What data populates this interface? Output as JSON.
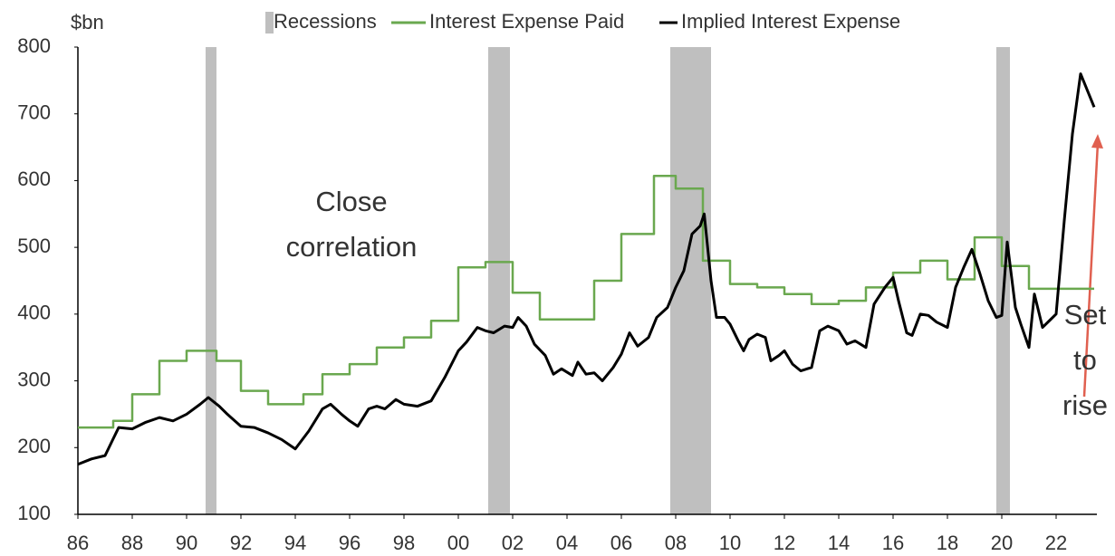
{
  "chart_data": {
    "type": "line",
    "y_label": "$bn",
    "xlim": [
      1986,
      2023.5
    ],
    "ylim": [
      100,
      800
    ],
    "yticks": [
      100,
      200,
      300,
      400,
      500,
      600,
      700,
      800
    ],
    "xticks": [
      {
        "value": 1986,
        "label": "86"
      },
      {
        "value": 1988,
        "label": "88"
      },
      {
        "value": 1990,
        "label": "90"
      },
      {
        "value": 1992,
        "label": "92"
      },
      {
        "value": 1994,
        "label": "94"
      },
      {
        "value": 1996,
        "label": "96"
      },
      {
        "value": 1998,
        "label": "98"
      },
      {
        "value": 2000,
        "label": "00"
      },
      {
        "value": 2002,
        "label": "02"
      },
      {
        "value": 2004,
        "label": "04"
      },
      {
        "value": 2006,
        "label": "06"
      },
      {
        "value": 2008,
        "label": "08"
      },
      {
        "value": 2010,
        "label": "10"
      },
      {
        "value": 2012,
        "label": "12"
      },
      {
        "value": 2014,
        "label": "14"
      },
      {
        "value": 2016,
        "label": "16"
      },
      {
        "value": 2018,
        "label": "18"
      },
      {
        "value": 2020,
        "label": "20"
      },
      {
        "value": 2022,
        "label": "22"
      }
    ],
    "recessions": {
      "name": "Recessions",
      "color": "#bfbfbf",
      "ranges": [
        [
          1990.7,
          1991.1
        ],
        [
          2001.1,
          2001.9
        ],
        [
          2007.8,
          2009.3
        ],
        [
          2019.8,
          2020.3
        ]
      ]
    },
    "series": [
      {
        "name": "Interest Expense Paid",
        "color": "#6aa84f",
        "x": [
          1986,
          1987.3,
          1987.3,
          1988,
          1988,
          1989,
          1989,
          1990,
          1990,
          1991.1,
          1991.1,
          1992,
          1992,
          1993,
          1993,
          1994.3,
          1994.3,
          1995,
          1995,
          1996,
          1996,
          1997,
          1997,
          1998,
          1998,
          1999,
          1999,
          2000,
          2000,
          2001,
          2001,
          2002,
          2002,
          2003,
          2003,
          2005,
          2005,
          2006,
          2006,
          2007.2,
          2007.2,
          2008,
          2008,
          2009,
          2009,
          2010,
          2010,
          2011,
          2011,
          2012,
          2012,
          2013,
          2013,
          2014,
          2014,
          2015,
          2015,
          2016,
          2016,
          2017,
          2017,
          2018,
          2018,
          2019,
          2019,
          2020,
          2020,
          2021,
          2021,
          2023.4
        ],
        "values": [
          230,
          230,
          240,
          240,
          280,
          280,
          330,
          330,
          345,
          345,
          330,
          330,
          285,
          285,
          265,
          265,
          280,
          280,
          310,
          310,
          325,
          325,
          350,
          350,
          365,
          365,
          390,
          390,
          470,
          470,
          478,
          478,
          432,
          432,
          392,
          392,
          450,
          450,
          520,
          520,
          607,
          607,
          588,
          588,
          480,
          480,
          445,
          445,
          440,
          440,
          430,
          430,
          415,
          415,
          420,
          420,
          440,
          440,
          462,
          462,
          480,
          480,
          452,
          452,
          515,
          515,
          472,
          472,
          438,
          438
        ]
      },
      {
        "name": "Implied Interest Expense",
        "color": "#000000",
        "x": [
          1986,
          1986.5,
          1987,
          1987.5,
          1988,
          1988.5,
          1989,
          1989.5,
          1990,
          1990.5,
          1990.8,
          1991.2,
          1991.5,
          1992,
          1992.5,
          1993,
          1993.5,
          1994,
          1994.5,
          1995,
          1995.3,
          1995.7,
          1996,
          1996.3,
          1996.7,
          1997,
          1997.3,
          1997.7,
          1998,
          1998.5,
          1999,
          1999.5,
          2000,
          2000.3,
          2000.7,
          2001,
          2001.3,
          2001.7,
          2002,
          2002.2,
          2002.5,
          2002.8,
          2003.2,
          2003.5,
          2003.8,
          2004.2,
          2004.4,
          2004.7,
          2005,
          2005.3,
          2005.7,
          2006,
          2006.3,
          2006.6,
          2007,
          2007.3,
          2007.7,
          2008,
          2008.3,
          2008.6,
          2008.9,
          2009.05,
          2009.3,
          2009.5,
          2009.8,
          2010,
          2010.3,
          2010.5,
          2010.7,
          2011,
          2011.3,
          2011.5,
          2011.8,
          2012,
          2012.3,
          2012.6,
          2013,
          2013.3,
          2013.6,
          2014,
          2014.3,
          2014.6,
          2015,
          2015.3,
          2015.7,
          2016,
          2016.2,
          2016.5,
          2016.7,
          2017,
          2017.3,
          2017.6,
          2018,
          2018.3,
          2018.6,
          2018.9,
          2019.2,
          2019.5,
          2019.8,
          2020,
          2020.2,
          2020.5,
          2020.7,
          2021,
          2021.2,
          2021.5,
          2021.8,
          2022,
          2022.3,
          2022.6,
          2022.9,
          2023.2,
          2023.4
        ],
        "values": [
          175,
          183,
          188,
          230,
          228,
          238,
          245,
          240,
          250,
          265,
          275,
          262,
          250,
          232,
          230,
          222,
          212,
          198,
          225,
          258,
          265,
          250,
          240,
          232,
          258,
          262,
          258,
          272,
          265,
          262,
          270,
          305,
          345,
          358,
          380,
          375,
          372,
          382,
          380,
          395,
          382,
          355,
          338,
          310,
          318,
          308,
          328,
          310,
          312,
          300,
          320,
          340,
          372,
          352,
          365,
          395,
          410,
          440,
          465,
          520,
          532,
          550,
          450,
          395,
          395,
          385,
          360,
          345,
          362,
          370,
          365,
          330,
          338,
          345,
          325,
          315,
          320,
          375,
          382,
          375,
          355,
          360,
          350,
          415,
          440,
          455,
          420,
          372,
          368,
          400,
          398,
          388,
          380,
          440,
          470,
          497,
          460,
          420,
          395,
          398,
          508,
          410,
          385,
          350,
          430,
          380,
          392,
          400,
          540,
          670,
          760,
          730,
          710
        ]
      }
    ],
    "annotations": [
      {
        "lines": [
          "Close",
          "correlation"
        ]
      },
      {
        "lines": [
          "Set",
          "to",
          "rise"
        ]
      }
    ]
  }
}
